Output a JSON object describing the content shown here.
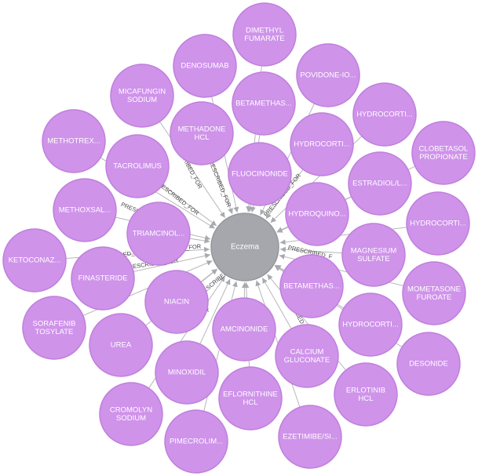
{
  "graph": {
    "center": {
      "label": "Eczema",
      "color": "#a6a7ad"
    },
    "node_color": "#cf93ea",
    "edge_color": "#b7b7bc",
    "relationship": "PRESCRIBED_FOR",
    "nodes": [
      {
        "id": "dimethyl-fumarate",
        "lines": [
          "DIMETHYL",
          "FUMARATE"
        ]
      },
      {
        "id": "denosumab",
        "lines": [
          "DENOSUMAB"
        ]
      },
      {
        "id": "povidone-io",
        "lines": [
          "POVIDONE-IO..."
        ]
      },
      {
        "id": "micafungin-sodium",
        "lines": [
          "MICAFUNGIN",
          "SODIUM"
        ]
      },
      {
        "id": "betamethas-1",
        "lines": [
          "BETAMETHAS..."
        ]
      },
      {
        "id": "hydrocorti-1",
        "lines": [
          "HYDROCORTI..."
        ]
      },
      {
        "id": "methadone-hcl",
        "lines": [
          "METHADONE",
          "HCL"
        ]
      },
      {
        "id": "methotrex",
        "lines": [
          "METHOTREX..."
        ]
      },
      {
        "id": "hydrocorti-2",
        "lines": [
          "HYDROCORTI..."
        ]
      },
      {
        "id": "clobetasol-propionate",
        "lines": [
          "CLOBETASOL",
          "PROPIONATE"
        ]
      },
      {
        "id": "tacrolimus",
        "lines": [
          "TACROLIMUS"
        ]
      },
      {
        "id": "fluocinonide",
        "lines": [
          "FLUOCINONIDE"
        ]
      },
      {
        "id": "estradiol",
        "lines": [
          "ESTRADIOL/L..."
        ]
      },
      {
        "id": "methoxsal",
        "lines": [
          "METHOXSAL..."
        ]
      },
      {
        "id": "hydroquino",
        "lines": [
          "HYDROQUINO..."
        ]
      },
      {
        "id": "hydrocorti-3",
        "lines": [
          "HYDROCORTI..."
        ]
      },
      {
        "id": "triamcinol",
        "lines": [
          "TRIAMCINOL..."
        ]
      },
      {
        "id": "ketoconaz",
        "lines": [
          "KETOCONAZ..."
        ]
      },
      {
        "id": "magnesium-sulfate",
        "lines": [
          "MAGNESIUM",
          "SULFATE"
        ]
      },
      {
        "id": "finasteride",
        "lines": [
          "FINASTERIDE"
        ]
      },
      {
        "id": "mometasone-furoate",
        "lines": [
          "MOMETASONE",
          "FUROATE"
        ]
      },
      {
        "id": "betamethas-2",
        "lines": [
          "BETAMETHAS..."
        ]
      },
      {
        "id": "niacin",
        "lines": [
          "NIACIN"
        ]
      },
      {
        "id": "sorafenib-tosylate",
        "lines": [
          "SORAFENIB",
          "TOSYLATE"
        ]
      },
      {
        "id": "hydrocorti-4",
        "lines": [
          "HYDROCORTI..."
        ]
      },
      {
        "id": "amcinonide",
        "lines": [
          "AMCINONIDE"
        ]
      },
      {
        "id": "urea",
        "lines": [
          "UREA"
        ]
      },
      {
        "id": "desonide",
        "lines": [
          "DESONIDE"
        ]
      },
      {
        "id": "calcium-gluconate",
        "lines": [
          "CALCIUM",
          "GLUCONATE"
        ]
      },
      {
        "id": "minoxidil",
        "lines": [
          "MINOXIDIL"
        ]
      },
      {
        "id": "erlotinib-hcl",
        "lines": [
          "ERLOTINIB",
          "HCL"
        ]
      },
      {
        "id": "eflornithine-hcl",
        "lines": [
          "EFLORNITHINE",
          "HCL"
        ]
      },
      {
        "id": "cromolyn-sodium",
        "lines": [
          "CROMOLYN",
          "SODIUM"
        ]
      },
      {
        "id": "ezetimibe",
        "lines": [
          "EZETIMIBE/SI..."
        ]
      },
      {
        "id": "pimecrolim",
        "lines": [
          "PIMECROLIM..."
        ]
      }
    ],
    "edge_labels": [
      "PRESCRIBED_FOR",
      "PRESCRIBED_FOR",
      "PRESCRIBED_FOR",
      "PRESCRIBED_FOR",
      "PRESCRIBED_FOR",
      "PRESCRIBED_FOR",
      "PRESCRIBED_FOR",
      "PRESCRIBED_FOR",
      "PRESCRIBED_F",
      "PRESCRIBED_F",
      "P",
      "P",
      "PRESCRIBED_F"
    ]
  }
}
